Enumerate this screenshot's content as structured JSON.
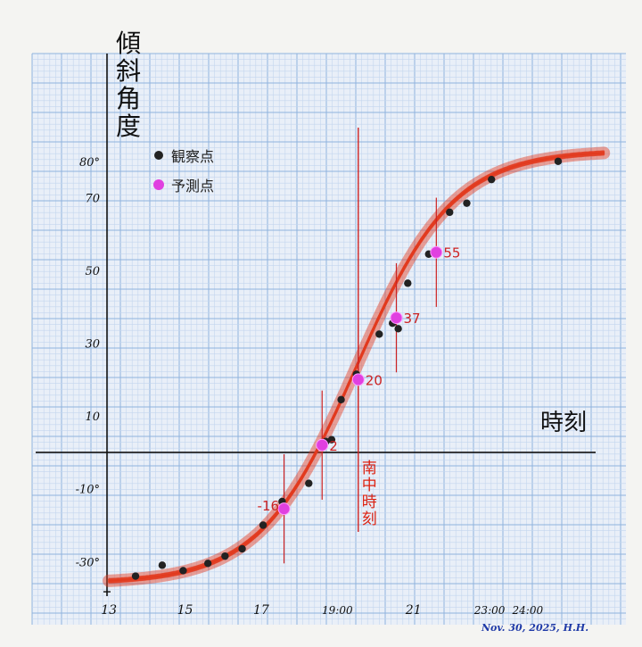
{
  "chart_data": {
    "type": "scatter",
    "title": "",
    "ylabel": "傾斜角度",
    "xlabel": "時刻",
    "x_ticks": [
      {
        "value": 13,
        "label": "13"
      },
      {
        "value": 15,
        "label": "15"
      },
      {
        "value": 17,
        "label": "17"
      },
      {
        "value": 19,
        "label": "19:00"
      },
      {
        "value": 21,
        "label": "21"
      },
      {
        "value": 23,
        "label": "23:00"
      },
      {
        "value": 24,
        "label": "24:00"
      }
    ],
    "y_ticks": [
      {
        "value": 80,
        "label": "80°"
      },
      {
        "value": 70,
        "label": "70"
      },
      {
        "value": 50,
        "label": "50"
      },
      {
        "value": 30,
        "label": "30"
      },
      {
        "value": 10,
        "label": "10"
      },
      {
        "value": -10,
        "label": "-10°"
      },
      {
        "value": -30,
        "label": "-30°"
      }
    ],
    "xlim": [
      12.95,
      26.3
    ],
    "ylim": [
      -39.5,
      90.0
    ],
    "grid": true,
    "legend": "top-left",
    "series": [
      {
        "name": "観察点",
        "color": "#222222",
        "points": [
          [
            13.7,
            -34.0
          ],
          [
            14.4,
            -31.0
          ],
          [
            14.95,
            -32.5
          ],
          [
            15.6,
            -30.5
          ],
          [
            16.05,
            -28.5
          ],
          [
            16.5,
            -26.5
          ],
          [
            17.05,
            -20.0
          ],
          [
            17.55,
            -13.5
          ],
          [
            18.25,
            -8.5
          ],
          [
            18.7,
            3.0
          ],
          [
            18.85,
            3.5
          ],
          [
            19.1,
            14.5
          ],
          [
            19.5,
            21.5
          ],
          [
            20.1,
            32.5
          ],
          [
            20.45,
            35.5
          ],
          [
            20.6,
            34.0
          ],
          [
            20.85,
            46.5
          ],
          [
            21.4,
            54.5
          ],
          [
            21.95,
            66.0
          ],
          [
            22.4,
            68.5
          ],
          [
            23.05,
            75.0
          ],
          [
            24.8,
            80.0
          ]
        ]
      },
      {
        "name": "予測点",
        "color": "#e040e0",
        "points": [
          {
            "x": 17.6,
            "y": -15.5,
            "label": "-16"
          },
          {
            "x": 18.6,
            "y": 2.0,
            "label": "2"
          },
          {
            "x": 19.55,
            "y": 20.0,
            "label": "20"
          },
          {
            "x": 20.55,
            "y": 37.0,
            "label": "37"
          },
          {
            "x": 21.6,
            "y": 55.0,
            "label": "55"
          }
        ]
      }
    ],
    "fit_curve": {
      "color": "#e23a1e",
      "min": -36,
      "max": 83,
      "mid": 19.5,
      "scale": 1.27
    },
    "meridian_transit": {
      "x": 19.55,
      "label": "南中時刻"
    },
    "footer_text": "Nov. 30, 2025,  H.H."
  }
}
